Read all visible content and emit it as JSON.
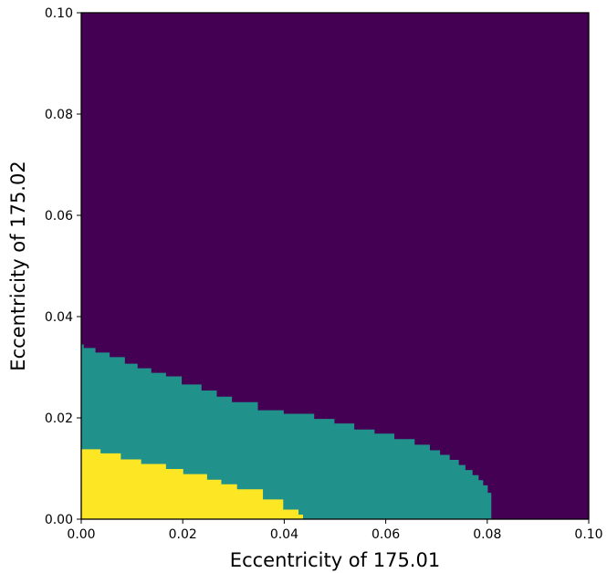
{
  "chart_data": {
    "type": "heatmap",
    "xlabel": "Eccentricity of 175.01",
    "ylabel": "Eccentricity of 175.02",
    "xlim": [
      0.0,
      0.1
    ],
    "ylim": [
      0.0,
      0.1
    ],
    "x_ticks": [
      "0.00",
      "0.02",
      "0.04",
      "0.06",
      "0.08",
      "0.10"
    ],
    "y_ticks": [
      "0.00",
      "0.02",
      "0.04",
      "0.06",
      "0.08",
      "0.10"
    ],
    "grid": false,
    "colors": {
      "background": "#440154",
      "middle": "#21918c",
      "inner": "#fde725"
    },
    "regions": [
      {
        "level": "middle",
        "boundary": [
          [
            0.0,
            0.0345
          ],
          [
            0.0005,
            0.0345
          ],
          [
            0.0005,
            0.0338
          ],
          [
            0.0028,
            0.0338
          ],
          [
            0.0028,
            0.0329
          ],
          [
            0.0056,
            0.0329
          ],
          [
            0.0056,
            0.032
          ],
          [
            0.0086,
            0.032
          ],
          [
            0.0086,
            0.0307
          ],
          [
            0.0111,
            0.0307
          ],
          [
            0.0111,
            0.0298
          ],
          [
            0.0138,
            0.0298
          ],
          [
            0.0138,
            0.0289
          ],
          [
            0.0167,
            0.0289
          ],
          [
            0.0167,
            0.0282
          ],
          [
            0.0198,
            0.0282
          ],
          [
            0.0198,
            0.0266
          ],
          [
            0.0237,
            0.0266
          ],
          [
            0.0237,
            0.0254
          ],
          [
            0.0267,
            0.0254
          ],
          [
            0.0267,
            0.0242
          ],
          [
            0.0297,
            0.0242
          ],
          [
            0.0297,
            0.0231
          ],
          [
            0.0348,
            0.0231
          ],
          [
            0.0348,
            0.0215
          ],
          [
            0.0399,
            0.0215
          ],
          [
            0.0399,
            0.0208
          ],
          [
            0.0459,
            0.0208
          ],
          [
            0.0459,
            0.0198
          ],
          [
            0.0499,
            0.0198
          ],
          [
            0.0499,
            0.0189
          ],
          [
            0.0538,
            0.0189
          ],
          [
            0.0538,
            0.0177
          ],
          [
            0.0578,
            0.0177
          ],
          [
            0.0578,
            0.0169
          ],
          [
            0.0617,
            0.0169
          ],
          [
            0.0617,
            0.0158
          ],
          [
            0.0657,
            0.0158
          ],
          [
            0.0657,
            0.0147
          ],
          [
            0.0687,
            0.0147
          ],
          [
            0.0687,
            0.0136
          ],
          [
            0.0707,
            0.0136
          ],
          [
            0.0707,
            0.0127
          ],
          [
            0.0726,
            0.0127
          ],
          [
            0.0726,
            0.0117
          ],
          [
            0.0744,
            0.0117
          ],
          [
            0.0744,
            0.0107
          ],
          [
            0.0757,
            0.0107
          ],
          [
            0.0757,
            0.0097
          ],
          [
            0.0771,
            0.0097
          ],
          [
            0.0771,
            0.0087
          ],
          [
            0.0783,
            0.0087
          ],
          [
            0.0783,
            0.0077
          ],
          [
            0.0792,
            0.0077
          ],
          [
            0.0792,
            0.0067
          ],
          [
            0.0801,
            0.0067
          ],
          [
            0.0801,
            0.0052
          ],
          [
            0.0808,
            0.0052
          ],
          [
            0.0808,
            0.0
          ],
          [
            0.0,
            0.0
          ]
        ]
      },
      {
        "level": "inner",
        "boundary": [
          [
            0.0,
            0.0138
          ],
          [
            0.0038,
            0.0138
          ],
          [
            0.0038,
            0.013
          ],
          [
            0.0078,
            0.013
          ],
          [
            0.0078,
            0.0118
          ],
          [
            0.0118,
            0.0118
          ],
          [
            0.0118,
            0.0109
          ],
          [
            0.0167,
            0.0109
          ],
          [
            0.0167,
            0.0099
          ],
          [
            0.0201,
            0.0099
          ],
          [
            0.0201,
            0.0089
          ],
          [
            0.0248,
            0.0089
          ],
          [
            0.0248,
            0.0078
          ],
          [
            0.0276,
            0.0078
          ],
          [
            0.0276,
            0.0069
          ],
          [
            0.0307,
            0.0069
          ],
          [
            0.0307,
            0.0059
          ],
          [
            0.0358,
            0.0059
          ],
          [
            0.0358,
            0.0039
          ],
          [
            0.0398,
            0.0039
          ],
          [
            0.0398,
            0.0019
          ],
          [
            0.0428,
            0.0019
          ],
          [
            0.0428,
            0.0009
          ],
          [
            0.0437,
            0.0009
          ],
          [
            0.0437,
            0.0
          ],
          [
            0.0,
            0.0
          ]
        ]
      }
    ]
  }
}
